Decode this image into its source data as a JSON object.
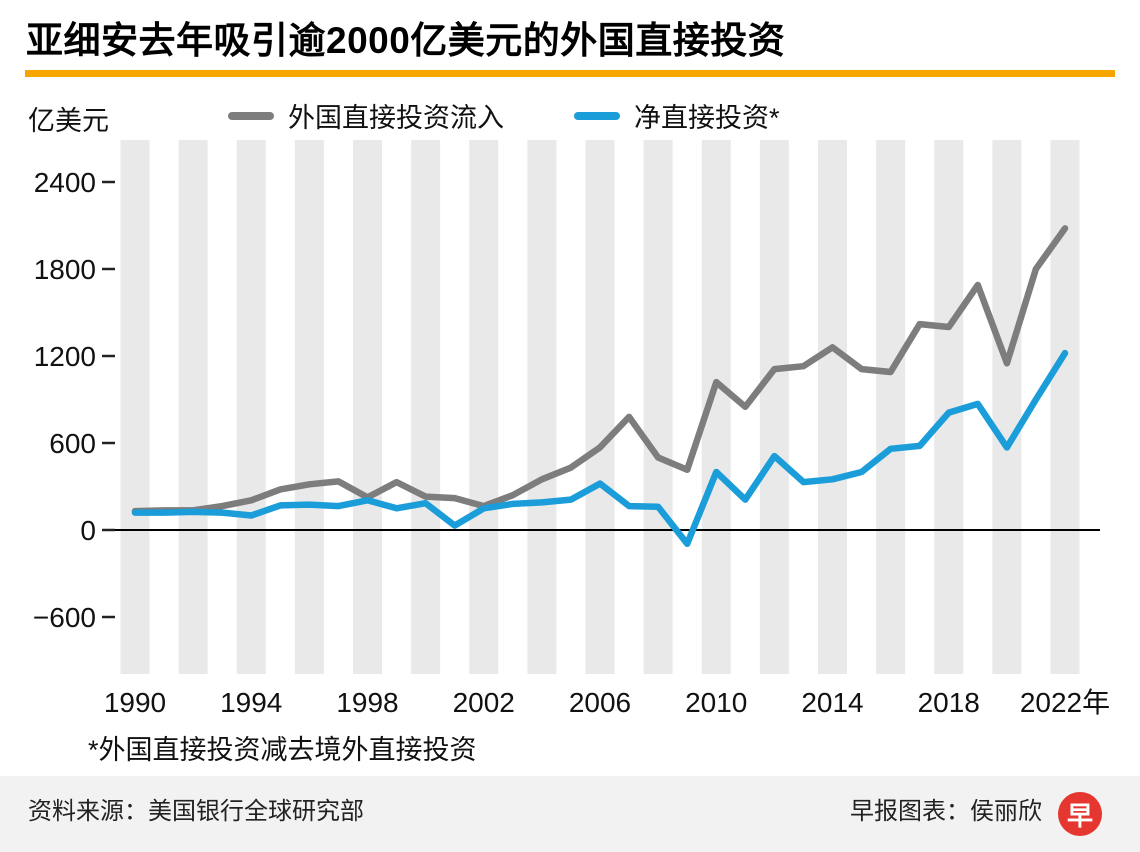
{
  "title": "亚细安去年吸引逾2000亿美元的外国直接投资",
  "accent_color": "#f7a600",
  "y_axis_unit": "亿美元",
  "legend": [
    {
      "label": "外国直接投资流入",
      "color": "#7d7d7d"
    },
    {
      "label": "净直接投资*",
      "color": "#1b9dd9"
    }
  ],
  "footnote": "*外国直接投资减去境外直接投资",
  "source": "资料来源：美国银行全球研究部",
  "credit": "早报图表：侯丽欣",
  "logo_text": "早",
  "logo_color": "#e5362f",
  "chart_data": {
    "type": "line",
    "title": "亚细安去年吸引逾2000亿美元的外国直接投资",
    "ylabel": "亿美元",
    "xlabel": "",
    "x": [
      1990,
      1991,
      1992,
      1993,
      1994,
      1995,
      1996,
      1997,
      1998,
      1999,
      2000,
      2001,
      2002,
      2003,
      2004,
      2005,
      2006,
      2007,
      2008,
      2009,
      2010,
      2011,
      2012,
      2013,
      2014,
      2015,
      2016,
      2017,
      2018,
      2019,
      2020,
      2021,
      2022
    ],
    "series": [
      {
        "name": "外国直接投资流入",
        "color": "#7d7d7d",
        "values": [
          130,
          135,
          135,
          165,
          205,
          280,
          315,
          335,
          225,
          330,
          230,
          220,
          165,
          240,
          350,
          430,
          570,
          780,
          500,
          415,
          1020,
          850,
          1110,
          1130,
          1260,
          1110,
          1090,
          1420,
          1400,
          1690,
          1150,
          1800,
          2080
        ]
      },
      {
        "name": "净直接投资*",
        "color": "#1b9dd9",
        "values": [
          120,
          120,
          125,
          120,
          100,
          170,
          175,
          165,
          205,
          150,
          185,
          30,
          150,
          180,
          190,
          210,
          320,
          165,
          160,
          -95,
          400,
          210,
          510,
          330,
          350,
          400,
          560,
          580,
          810,
          870,
          570,
          900,
          1220
        ]
      }
    ],
    "ylim": [
      -1000,
      2700
    ],
    "yticks": [
      2400,
      1800,
      1200,
      600,
      0,
      -600
    ],
    "xticks": [
      1990,
      1994,
      1998,
      2002,
      2006,
      2010,
      2014,
      2018,
      2022
    ],
    "xtick_year_suffix": "年",
    "grid": "zero-line-only",
    "legend_position": "top",
    "stripe_start": 1990,
    "stripe_every": 2,
    "stripe_color": "#e9e9e9",
    "zero_line_color": "#000000"
  }
}
